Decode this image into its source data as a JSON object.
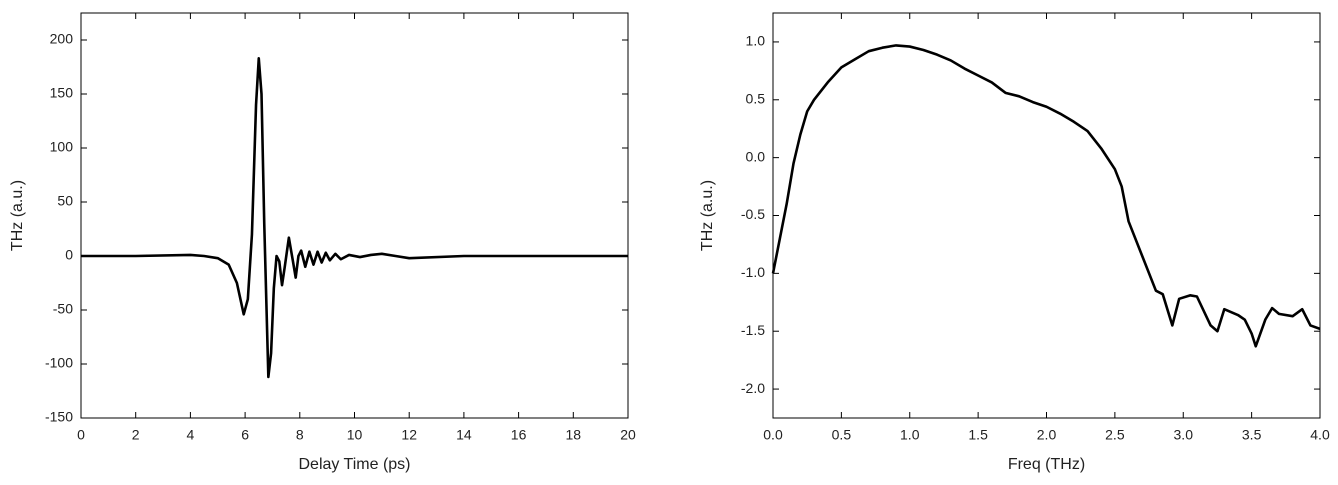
{
  "chart_data": [
    {
      "type": "line",
      "xlabel": "Delay Time (ps)",
      "ylabel": "THz (a.u.)",
      "color": "#000000",
      "x": [
        0,
        2,
        4,
        4.5,
        5,
        5.4,
        5.7,
        5.95,
        6.1,
        6.25,
        6.4,
        6.5,
        6.6,
        6.7,
        6.85,
        6.95,
        7.05,
        7.15,
        7.25,
        7.35,
        7.45,
        7.6,
        7.75,
        7.85,
        7.95,
        8.05,
        8.2,
        8.35,
        8.5,
        8.65,
        8.8,
        8.95,
        9.1,
        9.3,
        9.5,
        9.8,
        10.2,
        10.6,
        11,
        11.5,
        12,
        14,
        16,
        18,
        20
      ],
      "values": [
        0,
        0,
        1,
        0,
        -2,
        -8,
        -25,
        -54,
        -40,
        20,
        140,
        183,
        150,
        30,
        -112,
        -90,
        -30,
        0,
        -5,
        -27,
        -10,
        17,
        -5,
        -20,
        0,
        5,
        -10,
        4,
        -8,
        4,
        -6,
        3,
        -4,
        2,
        -3,
        1,
        -1,
        1,
        2,
        0,
        -2,
        0,
        0,
        0,
        0
      ],
      "xlim": [
        0,
        20
      ],
      "xticks": [
        0,
        2,
        4,
        6,
        8,
        10,
        12,
        14,
        16,
        18,
        20
      ],
      "ylim": [
        -150,
        225
      ],
      "yticks": [
        -150,
        -100,
        -50,
        0,
        50,
        100,
        150,
        200
      ]
    },
    {
      "type": "line",
      "xlabel": "Freq (THz)",
      "ylabel": "THz (a.u.)",
      "color": "#000000",
      "x": [
        0,
        0.05,
        0.1,
        0.15,
        0.2,
        0.25,
        0.3,
        0.4,
        0.5,
        0.6,
        0.7,
        0.8,
        0.9,
        1.0,
        1.1,
        1.2,
        1.3,
        1.4,
        1.5,
        1.6,
        1.7,
        1.8,
        1.9,
        2.0,
        2.1,
        2.2,
        2.3,
        2.4,
        2.5,
        2.55,
        2.6,
        2.7,
        2.8,
        2.85,
        2.92,
        2.97,
        3.05,
        3.1,
        3.2,
        3.25,
        3.3,
        3.4,
        3.45,
        3.5,
        3.53,
        3.6,
        3.65,
        3.7,
        3.8,
        3.87,
        3.93,
        4.0
      ],
      "values": [
        -1.0,
        -0.7,
        -0.4,
        -0.05,
        0.2,
        0.4,
        0.5,
        0.65,
        0.78,
        0.85,
        0.92,
        0.95,
        0.97,
        0.96,
        0.93,
        0.89,
        0.84,
        0.77,
        0.71,
        0.65,
        0.56,
        0.53,
        0.48,
        0.44,
        0.38,
        0.31,
        0.23,
        0.08,
        -0.1,
        -0.25,
        -0.55,
        -0.85,
        -1.15,
        -1.18,
        -1.45,
        -1.22,
        -1.19,
        -1.2,
        -1.45,
        -1.5,
        -1.31,
        -1.36,
        -1.4,
        -1.52,
        -1.63,
        -1.4,
        -1.3,
        -1.35,
        -1.37,
        -1.31,
        -1.45,
        -1.48
      ],
      "xlim": [
        0,
        4
      ],
      "xticks": [
        {
          "value": 0,
          "label": "0.0"
        },
        {
          "value": 0.5,
          "label": "0.5"
        },
        {
          "value": 1,
          "label": "1.0"
        },
        {
          "value": 1.5,
          "label": "1.5"
        },
        {
          "value": 2,
          "label": "2.0"
        },
        {
          "value": 2.5,
          "label": "2.5"
        },
        {
          "value": 3,
          "label": "3.0"
        },
        {
          "value": 3.5,
          "label": "3.5"
        },
        {
          "value": 4,
          "label": "4.0"
        }
      ],
      "ylim": [
        -2.25,
        1.25
      ],
      "yticks": [
        {
          "value": -2,
          "label": "-2.0"
        },
        {
          "value": -1.5,
          "label": "-1.5"
        },
        {
          "value": -1,
          "label": "-1.0"
        },
        {
          "value": -0.5,
          "label": "-0.5"
        },
        {
          "value": 0,
          "label": "0.0"
        },
        {
          "value": 0.5,
          "label": "0.5"
        },
        {
          "value": 1,
          "label": "1.0"
        }
      ]
    }
  ]
}
